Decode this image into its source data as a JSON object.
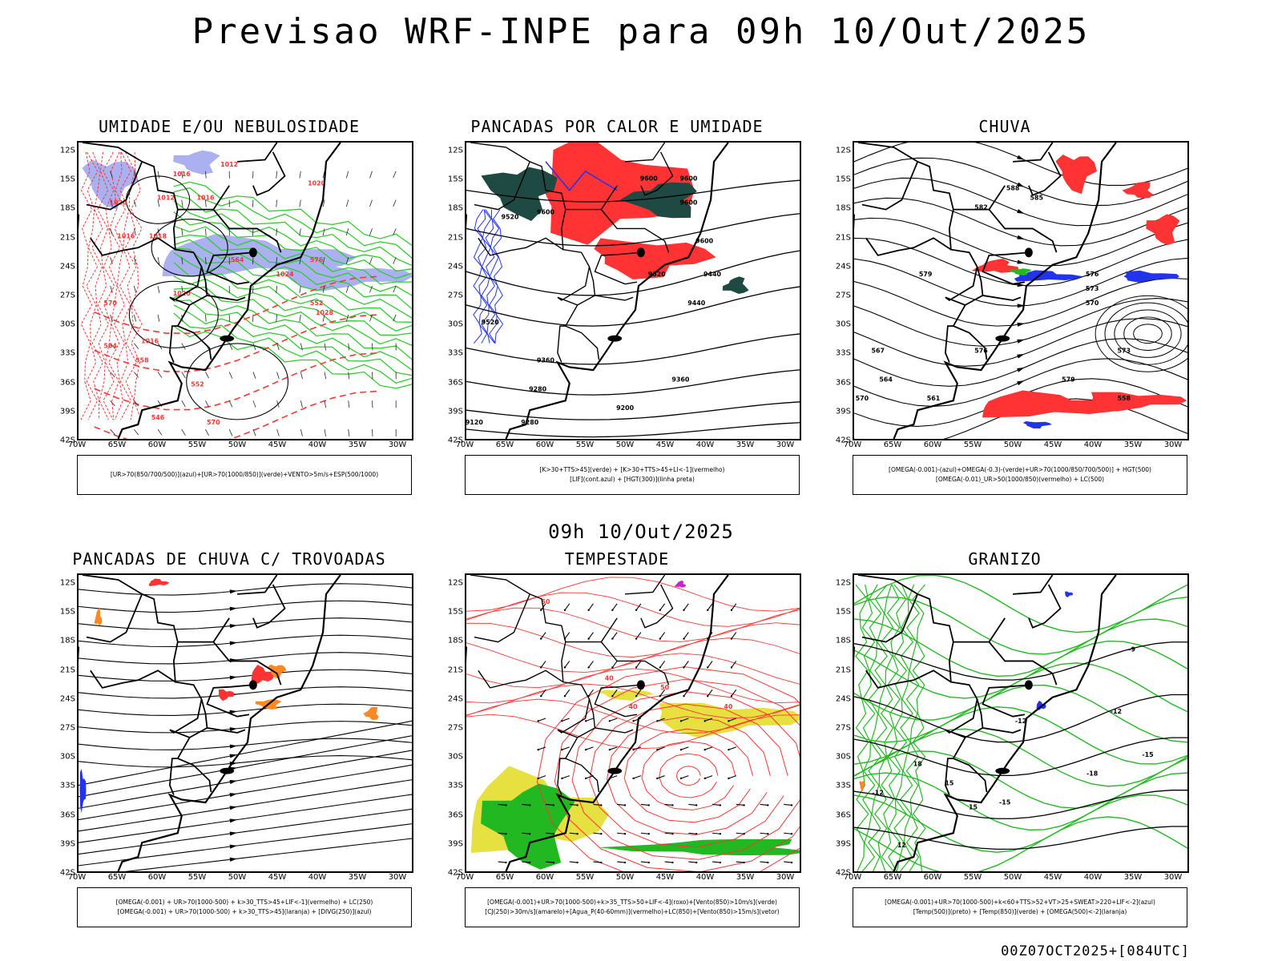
{
  "header": {
    "title": "Previsao WRF-INPE  para 09h 10/Out/2025",
    "mid_timestamp": "09h 10/Out/2025",
    "footer_run": "00Z07OCT2025+[084UTC]"
  },
  "axes": {
    "lat_ticks": [
      "12S",
      "15S",
      "18S",
      "21S",
      "24S",
      "27S",
      "30S",
      "33S",
      "36S",
      "39S",
      "42S"
    ],
    "lon_ticks": [
      "70W",
      "65W",
      "60W",
      "55W",
      "50W",
      "45W",
      "40W",
      "35W",
      "30W"
    ]
  },
  "colors": {
    "humidity_blue": "#aab0f0",
    "humidity_green": "#2ecc2e",
    "red": "#ff3333",
    "teal": "#1f4a44",
    "blue": "#2233ee",
    "yellow": "#e6e040",
    "green": "#22b822",
    "orange": "#ff8822",
    "black": "#000000"
  },
  "panels": [
    {
      "title": "UMIDADE E/OU NEBULOSIDADE",
      "legend": [
        "[UR>70(850/700/500)](azul)+[UR>70(1000/850)](verde)+VENTO>5m/s+ESP(500/1000)"
      ],
      "contour_labels": [
        "1016",
        "1012",
        "1020",
        "1016",
        "1012",
        "1020",
        "1018",
        "1016",
        "1024",
        "1020",
        "1028",
        "1016",
        "570",
        "564",
        "558",
        "552",
        "546",
        "570",
        "564",
        "576",
        "552"
      ]
    },
    {
      "title": "PANCADAS POR CALOR E UMIDADE",
      "legend": [
        "[K>30+TTS>45](verde) + [K>30+TTS>45+LI<-1](vermelho)",
        "[LIF](cont.azul) + [HGT(300)](linha preta)"
      ],
      "contour_labels": [
        "9600",
        "9600",
        "9600",
        "9520",
        "9600",
        "9520",
        "9600",
        "9520",
        "9440",
        "9440",
        "9360",
        "9280",
        "9360",
        "9200",
        "9280",
        "9120"
      ]
    },
    {
      "title": "CHUVA",
      "legend": [
        "[OMEGA(-0.001)-(azul)+OMEGA(-0.3)-(verde)+UR>70(1000/850/700/500)] + HGT(500)",
        "[OMEGA(-0.01)_UR>50(1000/850)(vermelho) + LC(500)"
      ],
      "contour_labels": [
        "588",
        "585",
        "582",
        "579",
        "576",
        "573",
        "570",
        "567",
        "564",
        "561",
        "558",
        "576",
        "579",
        "573",
        "570"
      ]
    },
    {
      "title": "PANCADAS DE CHUVA C/ TROVOADAS",
      "legend": [
        "[OMEGA(-0.001) + UR>70(1000-500) + k>30_TTS>45+LIF<-1](vermelho) + LC(250)",
        "[OMEGA(-0.001) + UR>70(1000-500) + k>30_TTS>45](laranja) + [DIVG(250)](azul)"
      ],
      "contour_labels": []
    },
    {
      "title": "TEMPESTADE",
      "legend": [
        "[OMEGA(-0.001)+UR>70(1000-500)+k>35_TTS>50+LIF<-4](roxo)+[Vento(850)>10m/s](verde)",
        "[CJ(250)>30m/s](amarelo)+[Agua_P(40-60mm)](vermelho)+LC(850)+[Vento(850)>15m/s](vetor)"
      ],
      "contour_labels": [
        "40",
        "50",
        "40",
        "40",
        "50"
      ]
    },
    {
      "title": "GRANIZO",
      "legend": [
        "[OMEGA(-0.001)+UR>70(1000-500)+k<60+TTS>52+VT>25+SWEAT>220+LIF<-2](azul)",
        "[Temp(500)](preto) + [Temp(850)](verde) + [OMEGA(500)<-2](laranja)"
      ],
      "contour_labels": [
        "-12",
        "-12",
        "-9",
        "-15",
        "-15",
        "-18",
        "-12",
        "15",
        "15",
        "18",
        "12"
      ]
    }
  ]
}
